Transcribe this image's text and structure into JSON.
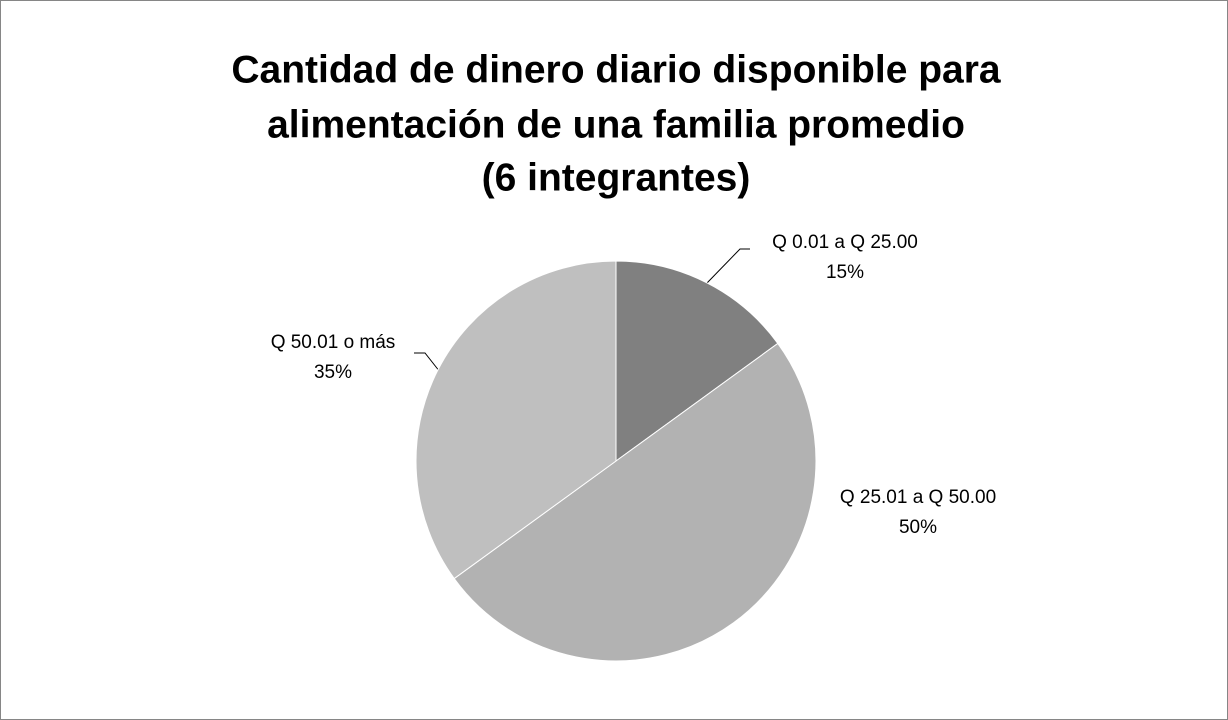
{
  "chart_data": {
    "type": "pie",
    "title": [
      "Cantidad de dinero diario disponible para",
      "alimentación de una familia promedio",
      "(6 integrantes)"
    ],
    "categories": [
      "Q 0.01 a Q 25.00",
      "Q 25.01 a Q 50.00",
      "Q 50.01 o más"
    ],
    "values": [
      15,
      50,
      35
    ],
    "value_labels": [
      "15%",
      "50%",
      "35%"
    ],
    "colors": [
      "#808080",
      "#b2b2b2",
      "#bfbfbf"
    ]
  }
}
